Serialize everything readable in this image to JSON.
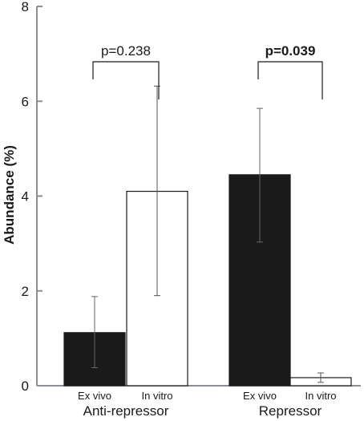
{
  "chart_data": {
    "type": "bar",
    "ylabel": "Abundance (%)",
    "ylim": [
      0,
      8
    ],
    "yticks": [
      "0",
      "2",
      "4",
      "6",
      "8"
    ],
    "grid": false,
    "groups": [
      {
        "name": "Anti-repressor",
        "bars": [
          {
            "label": "Ex vivo",
            "value": 1.12,
            "err_low": 0.38,
            "err_high": 1.88,
            "fill": "#1a1a1a"
          },
          {
            "label": "In vitro",
            "value": 4.1,
            "err_low": 1.9,
            "err_high": 6.32,
            "fill": "#ffffff"
          }
        ],
        "comparison": {
          "text": "p=0.238",
          "bold": false
        }
      },
      {
        "name": "Repressor",
        "bars": [
          {
            "label": "Ex vivo",
            "value": 4.45,
            "err_low": 3.03,
            "err_high": 5.85,
            "fill": "#1a1a1a"
          },
          {
            "label": "In vitro",
            "value": 0.17,
            "err_low": 0.07,
            "err_high": 0.27,
            "fill": "#ffffff"
          }
        ],
        "comparison": {
          "text": "p=0.039",
          "bold": true
        }
      }
    ]
  }
}
